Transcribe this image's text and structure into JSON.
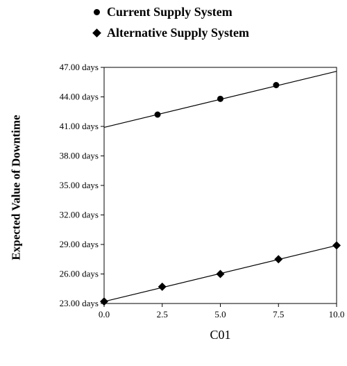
{
  "chart_data": {
    "type": "line",
    "title": "",
    "xlabel": "C01",
    "ylabel": "Expected Value of Downtime",
    "xlim": [
      0,
      10
    ],
    "ylim": [
      23,
      47
    ],
    "xticks": [
      "0.0",
      "2.5",
      "5.0",
      "7.5",
      "10.0"
    ],
    "xtick_values": [
      0,
      2.5,
      5,
      7.5,
      10
    ],
    "yticks": [
      "23.00 days",
      "26.00 days",
      "29.00 days",
      "32.00 days",
      "35.00 days",
      "38.00 days",
      "41.00 days",
      "44.00 days",
      "47.00 days"
    ],
    "ytick_values": [
      23,
      26,
      29,
      32,
      35,
      38,
      41,
      44,
      47
    ],
    "grid": false,
    "legend_position": "top",
    "series": [
      {
        "name": "Current Supply System",
        "marker": "circle",
        "line": {
          "x": [
            0,
            10
          ],
          "y": [
            40.9,
            46.6
          ]
        },
        "points": [
          {
            "x": 2.3,
            "y": 42.2
          },
          {
            "x": 5.0,
            "y": 43.8
          },
          {
            "x": 7.4,
            "y": 45.2
          }
        ]
      },
      {
        "name": "Alternative Supply System",
        "marker": "diamond",
        "line": {
          "x": [
            0,
            10
          ],
          "y": [
            23.2,
            28.9
          ]
        },
        "points": [
          {
            "x": 0.0,
            "y": 23.2
          },
          {
            "x": 2.5,
            "y": 24.7
          },
          {
            "x": 5.0,
            "y": 26.0
          },
          {
            "x": 7.5,
            "y": 27.5
          },
          {
            "x": 10.0,
            "y": 28.9
          }
        ]
      }
    ]
  }
}
